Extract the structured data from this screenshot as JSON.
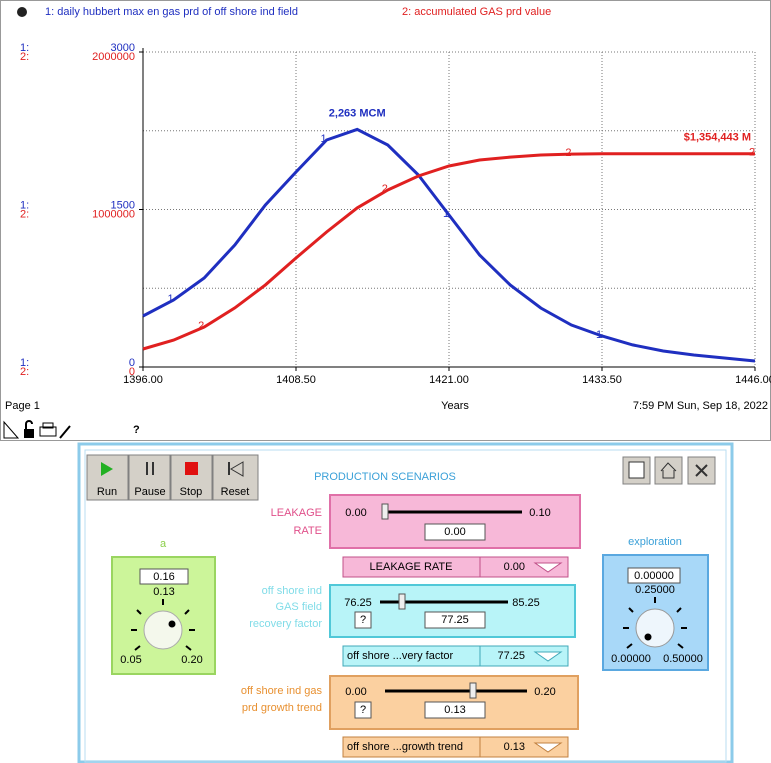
{
  "chart_data": {
    "type": "line",
    "x_label": "Years",
    "x": [
      1396,
      1398.5,
      1401,
      1403.5,
      1406,
      1408.5,
      1411,
      1413.5,
      1416,
      1418.5,
      1421,
      1423.5,
      1426,
      1428.5,
      1431,
      1433.5,
      1436,
      1438.5,
      1441,
      1443.5,
      1446
    ],
    "xlim": [
      1396,
      1446
    ],
    "xticks": [
      {
        "value": 1396,
        "label": "1396.00"
      },
      {
        "value": 1408.5,
        "label": "1408.50"
      },
      {
        "value": 1421,
        "label": "1421.00"
      },
      {
        "value": 1433.5,
        "label": "1433.50"
      },
      {
        "value": 1446,
        "label": "1446.00"
      }
    ],
    "ylim": [
      0,
      3000
    ],
    "yticks": [
      0,
      1500,
      3000
    ],
    "y2lim": [
      0,
      2000000
    ],
    "y2ticks": [
      0,
      1000000,
      2000000
    ],
    "ygrid": [
      0,
      750,
      1500,
      2250,
      3000
    ],
    "grid": true,
    "series": [
      {
        "name": "1: daily hubbert max en gas prd of off  shore ind field",
        "axis_tag": "1:",
        "marker": "1",
        "color": "#1f2fc0",
        "axis": "y",
        "values": [
          486,
          638,
          848,
          1162,
          1543,
          1857,
          2162,
          2263,
          2114,
          1829,
          1448,
          1067,
          781,
          562,
          400,
          295,
          210,
          152,
          114,
          86,
          57
        ],
        "value_labels": [
          null,
          null,
          null,
          null,
          null,
          null,
          null,
          "2,263 MCM",
          null,
          null,
          null,
          null,
          null,
          null,
          null,
          null,
          null,
          null,
          null,
          null,
          null
        ]
      },
      {
        "name": "2: accumulated GAS prd value",
        "axis_tag": "2:",
        "marker": "2",
        "color": "#e02020",
        "axis": "y2",
        "values": [
          114000,
          171000,
          254000,
          375000,
          521000,
          692000,
          857000,
          1010000,
          1124000,
          1213000,
          1276000,
          1314000,
          1333000,
          1346000,
          1352000,
          1354000,
          1354200,
          1354300,
          1354400,
          1354420,
          1354443
        ],
        "value_labels": [
          null,
          null,
          null,
          null,
          null,
          null,
          null,
          null,
          null,
          null,
          null,
          null,
          null,
          null,
          null,
          null,
          null,
          null,
          null,
          null,
          "$1,354,443 M"
        ]
      }
    ]
  },
  "footer": {
    "page": "Page 1",
    "timestamp": "7:59 PM   Sun, Sep 18, 2022"
  },
  "toolbar": {
    "help": "?"
  },
  "panel": {
    "title": "PRODUCTION SCENARIOS",
    "buttons": [
      "Run",
      "Pause",
      "Stop",
      "Reset"
    ],
    "knob_a": {
      "label": "a",
      "input": "0.16",
      "value": "0.13",
      "min": "0.05",
      "max": "0.20"
    },
    "knob_exploration": {
      "label": "exploration",
      "input": "0.00000",
      "value": "0.25000",
      "min": "0.00000",
      "max": "0.50000"
    },
    "slider_leakage": {
      "label": [
        "LEAKAGE",
        "RATE"
      ],
      "min": "0.00",
      "max": "0.10",
      "value": "0.00",
      "list_name": "LEAKAGE  RATE",
      "list_value": "0.00"
    },
    "slider_recovery": {
      "label": [
        "off shore ind",
        "GAS field",
        "recovery factor"
      ],
      "min": "76.25",
      "max": "85.25",
      "value": "77.25",
      "help": "?",
      "list_name": "off shore ...very factor",
      "list_value": "77.25"
    },
    "slider_growth": {
      "label": [
        "off shore ind gas",
        "prd growth trend"
      ],
      "min": "0.00",
      "max": "0.20",
      "value": "0.13",
      "help": "?",
      "list_name": "off shore ...growth trend",
      "list_value": "0.13"
    }
  }
}
